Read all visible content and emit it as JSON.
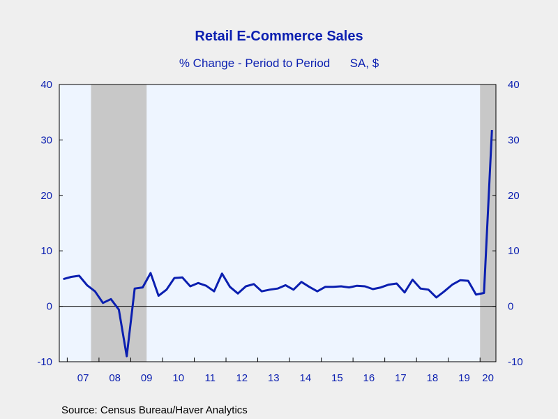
{
  "colors": {
    "background": "#efefef",
    "plot_background": "#eef5ff",
    "recession_shading": "#c8c8c8",
    "series_line": "#0b1fb0",
    "text": "#0b1fb0",
    "axis": "#000000"
  },
  "source_text": "Source:  Census Bureau/Haver Analytics",
  "chart_data": {
    "type": "line",
    "title": "Retail E-Commerce Sales",
    "subtitle": "% Change - Period to Period      SA, $",
    "xlabel": "",
    "ylabel": "",
    "ylim": [
      -10,
      40
    ],
    "yticks": [
      -10,
      0,
      10,
      20,
      30,
      40
    ],
    "right_axis": true,
    "grid": false,
    "zero_line": true,
    "x_tick_labels": [
      "07",
      "08",
      "09",
      "10",
      "11",
      "12",
      "13",
      "14",
      "15",
      "16",
      "17",
      "18",
      "19",
      "20"
    ],
    "x_range": [
      "2006-Q4",
      "2020-Q2"
    ],
    "recession_bands": [
      {
        "start": "2007-Q4",
        "end": "2009-Q2"
      },
      {
        "start": "2020-Q1",
        "end": "2020-Q2"
      }
    ],
    "series": [
      {
        "frequency": "quarterly",
        "x": [
          "2006-Q4",
          "2007-Q1",
          "2007-Q2",
          "2007-Q3",
          "2007-Q4",
          "2008-Q1",
          "2008-Q2",
          "2008-Q3",
          "2008-Q4",
          "2009-Q1",
          "2009-Q2",
          "2009-Q3",
          "2009-Q4",
          "2010-Q1",
          "2010-Q2",
          "2010-Q3",
          "2010-Q4",
          "2011-Q1",
          "2011-Q2",
          "2011-Q3",
          "2011-Q4",
          "2012-Q1",
          "2012-Q2",
          "2012-Q3",
          "2012-Q4",
          "2013-Q1",
          "2013-Q2",
          "2013-Q3",
          "2013-Q4",
          "2014-Q1",
          "2014-Q2",
          "2014-Q3",
          "2014-Q4",
          "2015-Q1",
          "2015-Q2",
          "2015-Q3",
          "2015-Q4",
          "2016-Q1",
          "2016-Q2",
          "2016-Q3",
          "2016-Q4",
          "2017-Q1",
          "2017-Q2",
          "2017-Q3",
          "2017-Q4",
          "2018-Q1",
          "2018-Q2",
          "2018-Q3",
          "2018-Q4",
          "2019-Q1",
          "2019-Q2",
          "2019-Q3",
          "2019-Q4",
          "2020-Q1",
          "2020-Q2"
        ],
        "values": [
          4.9,
          5.3,
          5.5,
          3.8,
          2.7,
          0.6,
          1.3,
          -0.6,
          -9.0,
          3.2,
          3.4,
          6.0,
          1.9,
          3.0,
          5.1,
          5.2,
          3.6,
          4.2,
          3.7,
          2.7,
          5.9,
          3.5,
          2.3,
          3.6,
          4.0,
          2.7,
          3.0,
          3.2,
          3.8,
          3.0,
          4.4,
          3.5,
          2.7,
          3.5,
          3.5,
          3.6,
          3.4,
          3.7,
          3.6,
          3.1,
          3.4,
          3.9,
          4.1,
          2.5,
          4.8,
          3.2,
          3.0,
          1.6,
          2.7,
          3.9,
          4.7,
          4.6,
          2.1,
          2.4,
          31.8
        ]
      }
    ]
  }
}
